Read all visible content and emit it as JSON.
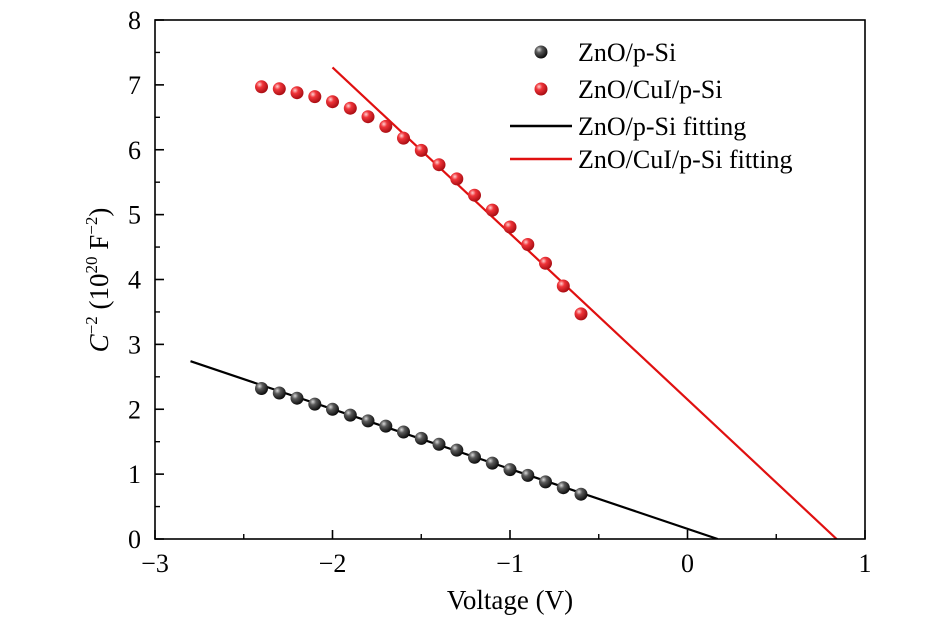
{
  "chart_data": {
    "type": "scatter",
    "xlabel": "Voltage (V)",
    "ylabel": {
      "base": "C",
      "base_sup": "−2",
      "unit_prefix": " (10",
      "unit_exp": "20",
      "unit_main": " F",
      "unit_sup": "−2",
      "unit_close": ")"
    },
    "xlim": [
      -3,
      1
    ],
    "ylim": [
      0,
      8
    ],
    "xticks": [
      -3,
      -2,
      -1,
      0,
      1
    ],
    "yticks": [
      0,
      1,
      2,
      3,
      4,
      5,
      6,
      7,
      8
    ],
    "xtick_labels": [
      "−3",
      "−2",
      "−1",
      "0",
      "1"
    ],
    "ytick_labels": [
      "0",
      "1",
      "2",
      "3",
      "4",
      "5",
      "6",
      "7",
      "8"
    ],
    "grid": false,
    "legend_position": "top-right",
    "series": [
      {
        "name": "ZnO/p-Si",
        "kind": "points",
        "color": "#2a2a2a",
        "x": [
          -2.4,
          -2.3,
          -2.2,
          -2.1,
          -2.0,
          -1.9,
          -1.8,
          -1.7,
          -1.6,
          -1.5,
          -1.4,
          -1.3,
          -1.2,
          -1.1,
          -1.0,
          -0.9,
          -0.8,
          -0.7,
          -0.6
        ],
        "y": [
          2.32,
          2.25,
          2.17,
          2.08,
          2.0,
          1.91,
          1.82,
          1.74,
          1.65,
          1.55,
          1.46,
          1.37,
          1.26,
          1.17,
          1.07,
          0.98,
          0.88,
          0.79,
          0.69
        ]
      },
      {
        "name": "ZnO/CuI/p-Si",
        "kind": "points",
        "color": "#e8232a",
        "x": [
          -2.4,
          -2.3,
          -2.2,
          -2.1,
          -2.0,
          -1.9,
          -1.8,
          -1.7,
          -1.6,
          -1.5,
          -1.4,
          -1.3,
          -1.2,
          -1.1,
          -1.0,
          -0.9,
          -0.8,
          -0.7,
          -0.6
        ],
        "y": [
          6.97,
          6.94,
          6.88,
          6.82,
          6.74,
          6.64,
          6.51,
          6.36,
          6.18,
          5.99,
          5.77,
          5.55,
          5.3,
          5.07,
          4.81,
          4.54,
          4.25,
          3.9,
          3.47
        ]
      },
      {
        "name": "ZnO/p-Si fitting",
        "kind": "line",
        "color": "#000000",
        "x": [
          -2.8,
          0.17
        ],
        "y": [
          2.74,
          0.0
        ]
      },
      {
        "name": "ZnO/CuI/p-Si fitting",
        "kind": "line",
        "color": "#e01010",
        "x": [
          -2.0,
          0.84
        ],
        "y": [
          7.27,
          0.0
        ]
      }
    ]
  }
}
